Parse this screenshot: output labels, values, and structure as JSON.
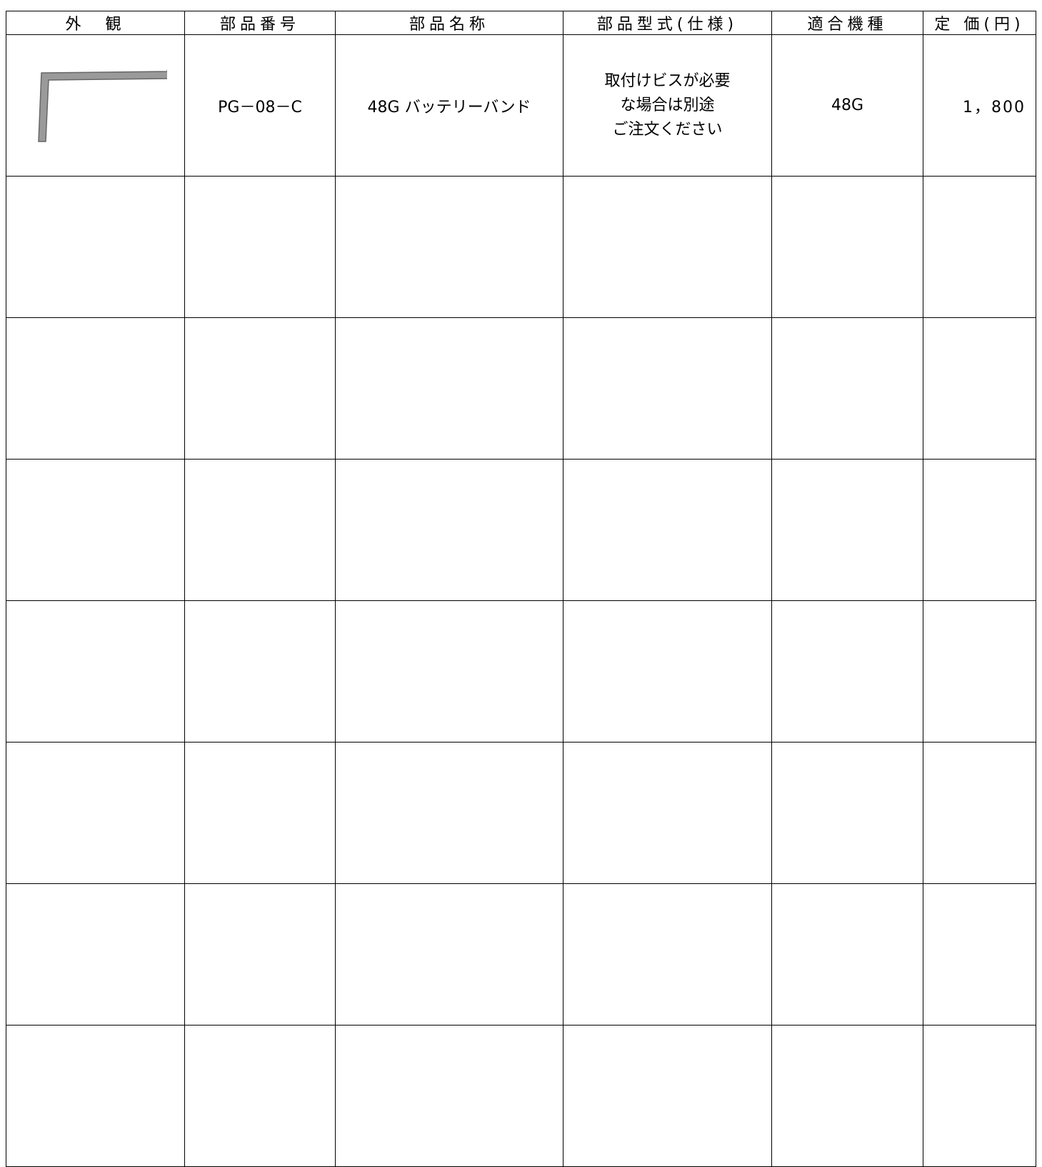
{
  "table": {
    "headers": [
      "外　観",
      "部品番号",
      "部品名称",
      "部品型式(仕様)",
      "適合機種",
      "定 価(円)"
    ],
    "rows": [
      {
        "part_number": "PG－08－C",
        "part_name": "48G バッテリーバンド",
        "spec": [
          "取付けビスが必要",
          "な場合は別途",
          "ご注文ください"
        ],
        "model": "48G",
        "price": "1，800"
      }
    ]
  }
}
